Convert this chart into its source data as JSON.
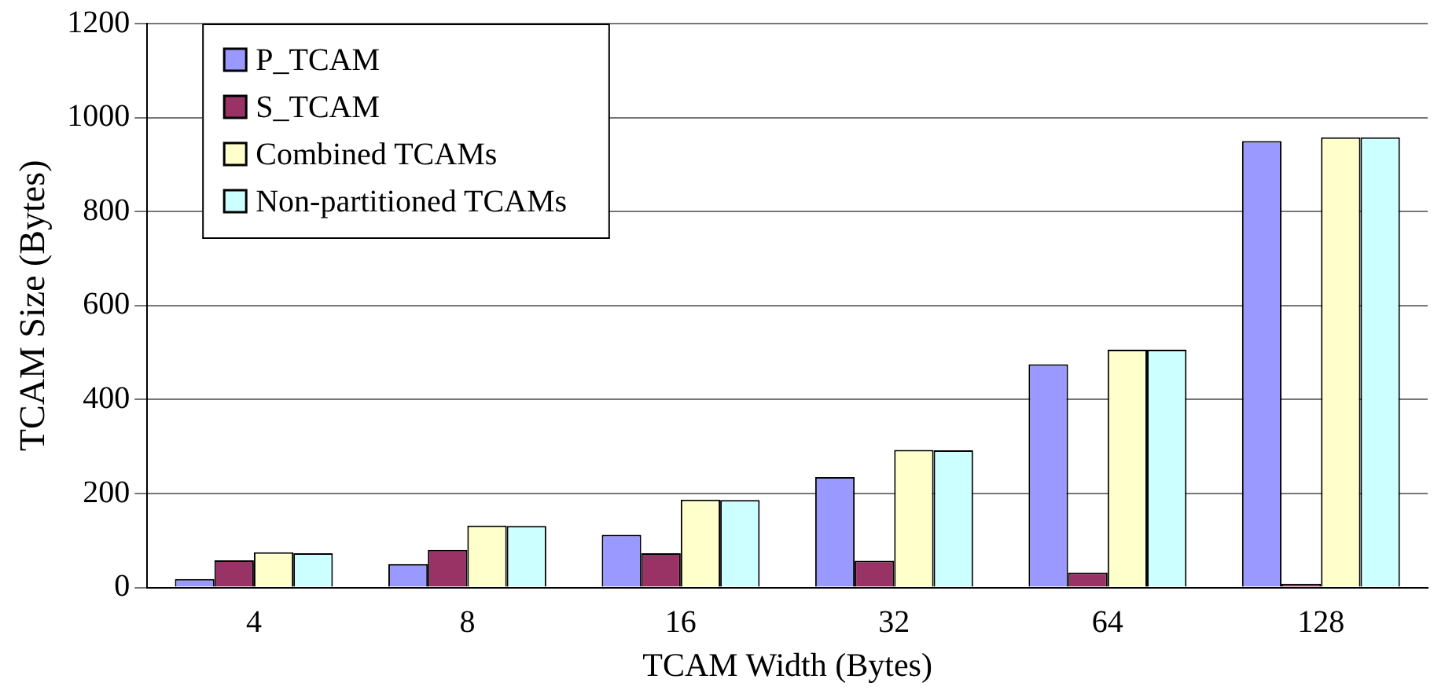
{
  "chart_data": {
    "type": "bar",
    "xlabel": "TCAM Width (Bytes)",
    "ylabel": "TCAM Size (Bytes)",
    "categories": [
      "4",
      "8",
      "16",
      "32",
      "64",
      "128"
    ],
    "series": [
      {
        "name": "P_TCAM",
        "color": "#9999ff",
        "values": [
          18,
          50,
          112,
          235,
          475,
          950
        ]
      },
      {
        "name": "S_TCAM",
        "color": "#993366",
        "values": [
          58,
          80,
          73,
          57,
          32,
          8
        ]
      },
      {
        "name": "Combined TCAMs",
        "color": "#ffffcc",
        "values": [
          75,
          132,
          187,
          293,
          506,
          958
        ]
      },
      {
        "name": "Non-partitioned TCAMs",
        "color": "#ccffff",
        "values": [
          73,
          131,
          186,
          292,
          506,
          958
        ]
      }
    ],
    "ylim": [
      0,
      1200
    ],
    "yticks": [
      0,
      200,
      400,
      600,
      800,
      1000,
      1200
    ],
    "grid": "y",
    "legend": "top left"
  }
}
